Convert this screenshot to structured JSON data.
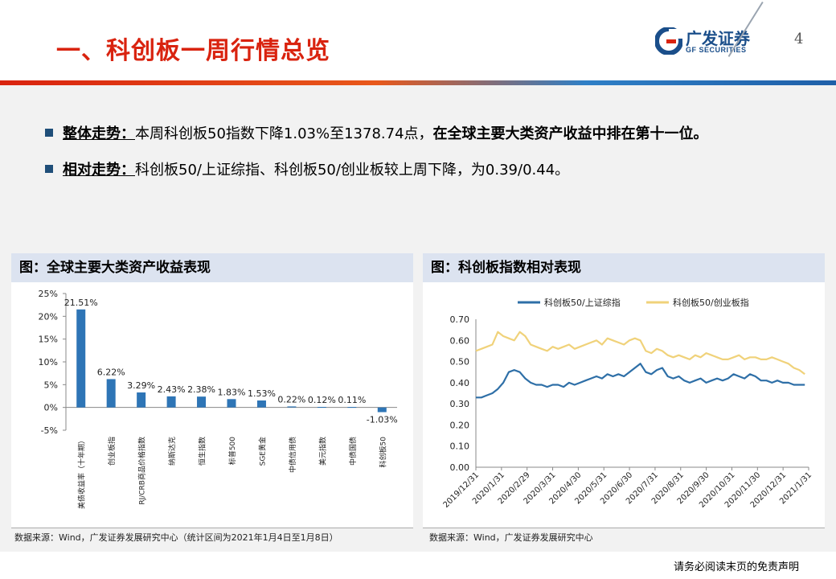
{
  "header": {
    "title": "一、科创板一周行情总览",
    "logo_cn": "广发证券",
    "logo_en": "GF SECURITIES",
    "page_number": "4"
  },
  "bullets": [
    {
      "label": "整体走势：",
      "text": "本周科创板50指数下降1.03%至1378.74点，",
      "bold": "在全球主要大类资产收益中排在第十一位。"
    },
    {
      "label": "相对走势：",
      "text": "科创板50/上证综指、科创板50/创业板较上周下降，为0.39/0.44。",
      "bold": ""
    }
  ],
  "left_panel": {
    "title": "图：全球主要大类资产收益表现",
    "source": "数据来源：Wind，广发证券发展研究中心（统计区间为2021年1月4日至1月8日）"
  },
  "right_panel": {
    "title": "图：科创板指数相对表现",
    "source": "数据来源：Wind，广发证券发展研究中心"
  },
  "footer": {
    "disclaimer": "请务必阅读末页的免责声明"
  },
  "chart_data": [
    {
      "type": "bar",
      "categories": [
        "美债收益率（十年期）",
        "创业板指",
        "RJ/CRB商品价格指数",
        "纳斯达克",
        "恒生指数",
        "标普500",
        "SGE黄金",
        "中债信用债",
        "美元指数",
        "中债国债",
        "科创板50"
      ],
      "values": [
        21.51,
        6.22,
        3.29,
        2.43,
        2.38,
        1.83,
        1.53,
        0.22,
        0.12,
        0.11,
        -1.03
      ],
      "labels": [
        "21.51%",
        "6.22%",
        "3.29%",
        "2.43%",
        "2.38%",
        "1.83%",
        "1.53%",
        "0.22%",
        "0.12%",
        "0.11%",
        "-1.03%"
      ],
      "yticks": [
        "25%",
        "20%",
        "15%",
        "10%",
        "5%",
        "0%",
        "-5%"
      ],
      "ylim": [
        -5,
        25
      ],
      "color": "#2e75b6"
    },
    {
      "type": "line",
      "x_ticks": [
        "2019/12/31",
        "2020/1/31",
        "2020/2/29",
        "2020/3/31",
        "2020/4/30",
        "2020/5/31",
        "2020/6/30",
        "2020/7/31",
        "2020/8/31",
        "2020/9/30",
        "2020/10/31",
        "2020/11/30",
        "2020/12/31",
        "2021/1/31"
      ],
      "yticks": [
        "0.70",
        "0.60",
        "0.50",
        "0.40",
        "0.30",
        "0.20",
        "0.10",
        "0.00"
      ],
      "ylim": [
        0,
        0.7
      ],
      "series": [
        {
          "name": "科创板50/上证综指",
          "color": "#2e6fa7",
          "values": [
            0.33,
            0.33,
            0.34,
            0.35,
            0.37,
            0.4,
            0.45,
            0.46,
            0.45,
            0.42,
            0.4,
            0.39,
            0.39,
            0.38,
            0.39,
            0.39,
            0.38,
            0.4,
            0.39,
            0.4,
            0.41,
            0.42,
            0.43,
            0.42,
            0.44,
            0.43,
            0.44,
            0.43,
            0.45,
            0.47,
            0.49,
            0.45,
            0.44,
            0.46,
            0.47,
            0.43,
            0.42,
            0.43,
            0.41,
            0.4,
            0.41,
            0.42,
            0.4,
            0.41,
            0.42,
            0.41,
            0.42,
            0.44,
            0.43,
            0.42,
            0.44,
            0.43,
            0.41,
            0.41,
            0.4,
            0.41,
            0.4,
            0.4,
            0.39,
            0.39,
            0.39
          ]
        },
        {
          "name": "科创板50/创业板指",
          "color": "#f0d27a",
          "values": [
            0.55,
            0.56,
            0.57,
            0.58,
            0.64,
            0.62,
            0.61,
            0.6,
            0.64,
            0.62,
            0.58,
            0.57,
            0.56,
            0.55,
            0.57,
            0.56,
            0.57,
            0.58,
            0.56,
            0.57,
            0.58,
            0.59,
            0.6,
            0.58,
            0.61,
            0.6,
            0.59,
            0.58,
            0.6,
            0.61,
            0.6,
            0.55,
            0.54,
            0.56,
            0.55,
            0.53,
            0.52,
            0.53,
            0.52,
            0.51,
            0.53,
            0.52,
            0.54,
            0.53,
            0.52,
            0.51,
            0.51,
            0.52,
            0.53,
            0.51,
            0.52,
            0.52,
            0.51,
            0.51,
            0.52,
            0.51,
            0.5,
            0.49,
            0.47,
            0.46,
            0.44
          ]
        }
      ]
    }
  ]
}
